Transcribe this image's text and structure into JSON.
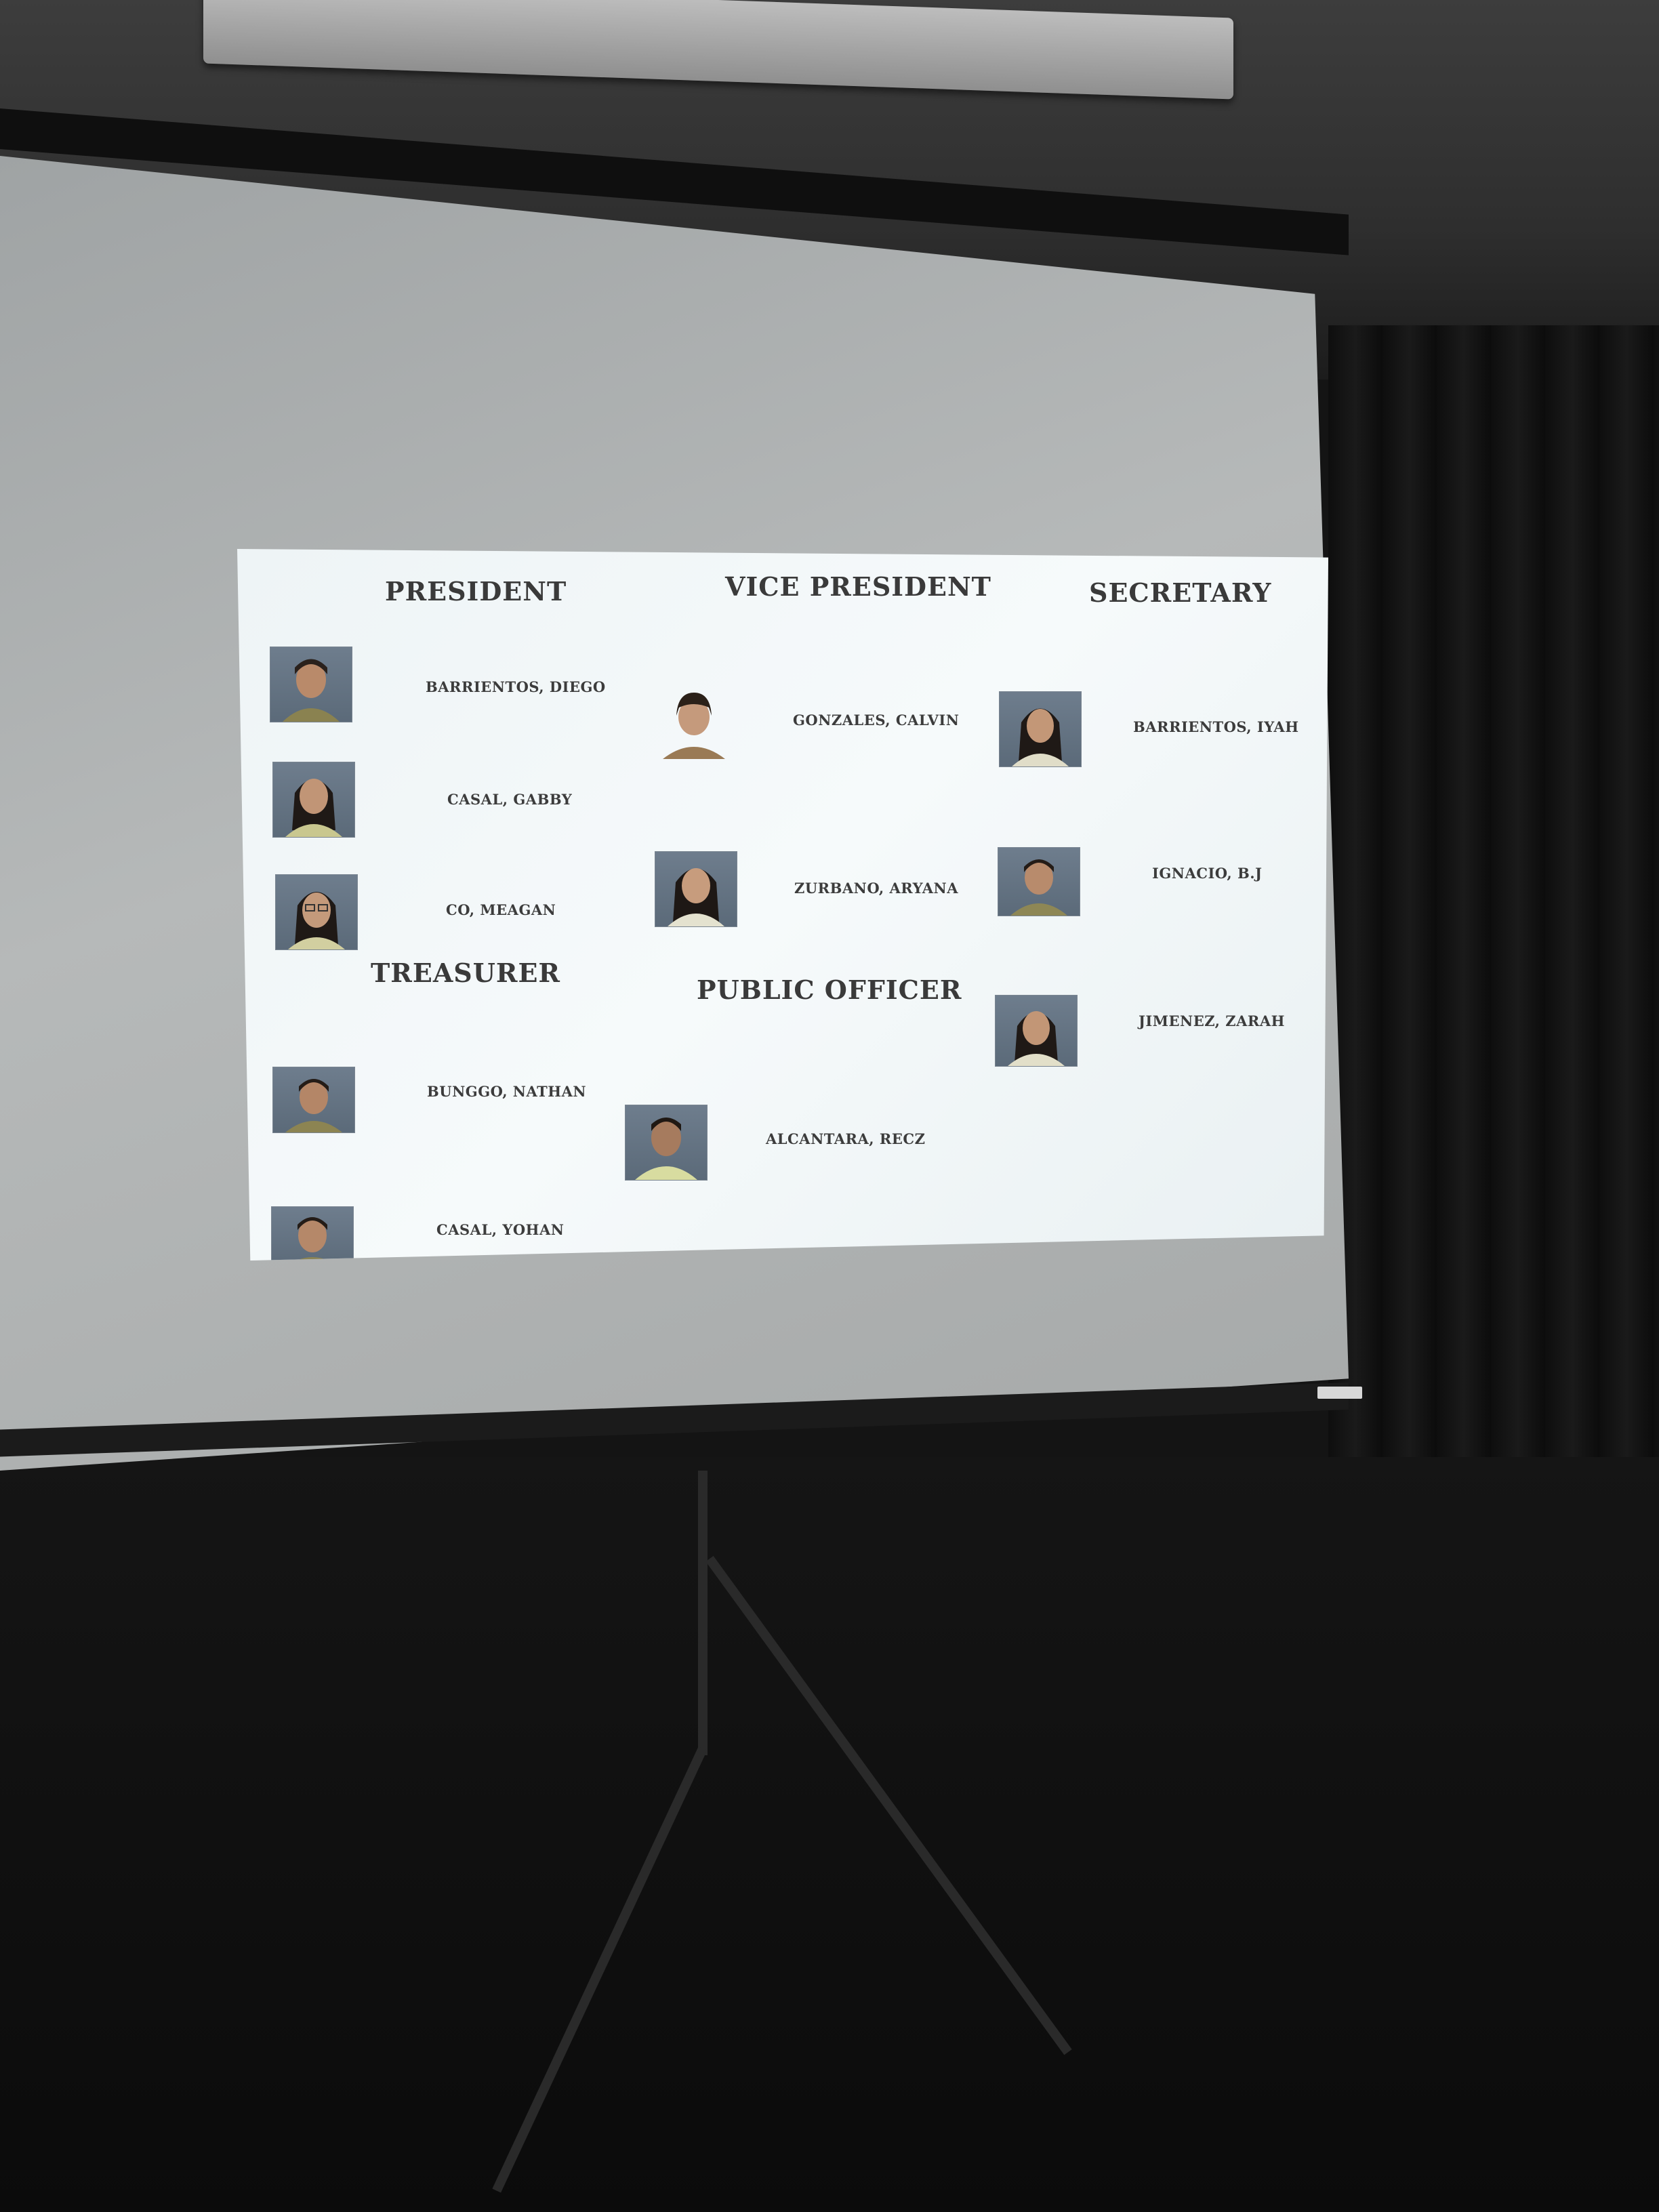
{
  "slide": {
    "columns": {
      "president": {
        "heading": "PRESIDENT",
        "members": [
          "BARRIENTOS, DIEGO",
          "CASAL, GABBY",
          "CO, MEAGAN"
        ]
      },
      "vice_president": {
        "heading": "VICE PRESIDENT",
        "members": [
          "GONZALES, CALVIN",
          "ZURBANO, ARYANA"
        ]
      },
      "secretary": {
        "heading": "SECRETARY",
        "members": [
          "BARRIENTOS, IYAH",
          "IGNACIO, B.J",
          "JIMENEZ, ZARAH"
        ]
      },
      "treasurer": {
        "heading": "TREASURER",
        "members": [
          "BUNGGO, NATHAN",
          "CASAL, YOHAN"
        ]
      },
      "public_officer": {
        "heading": "PUBLIC OFFICER",
        "members": [
          "ALCANTARA, RECZ"
        ]
      }
    }
  },
  "icons": {
    "portrait": "student-portrait-icon"
  }
}
